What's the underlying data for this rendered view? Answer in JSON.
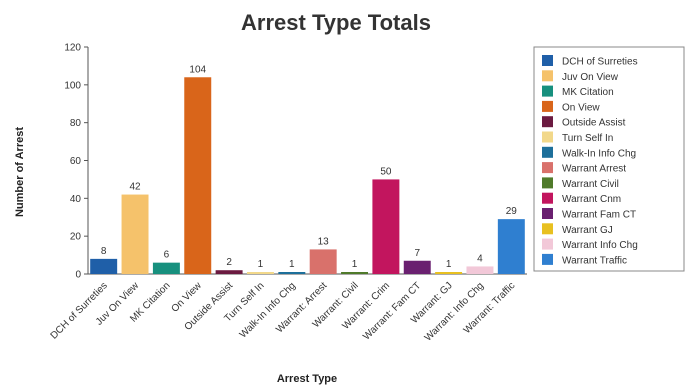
{
  "chart_data": {
    "type": "bar",
    "title": "Arrest Type Totals",
    "xlabel": "Arrest Type",
    "ylabel": "Number of Arrest",
    "ylim": [
      0,
      120
    ],
    "yticks": [
      "0",
      "20",
      "40",
      "60",
      "80",
      "100",
      "120"
    ],
    "grid": false,
    "legend_position": "right",
    "categories": [
      "DCH of Surreties",
      "Juv On View",
      "MK Citation",
      "On View",
      "Outside Assist",
      "Turn Self In",
      "Walk-In Info Chg",
      "Warrant: Arrest",
      "Warrant: Civil",
      "Warrant: Crim",
      "Warrant: Fam CT",
      "Warrant: GJ",
      "Warrant: Info Chg",
      "Warrant: Traffic"
    ],
    "values": [
      8,
      42,
      6,
      104,
      2,
      1,
      1,
      13,
      1,
      50,
      7,
      1,
      4,
      29
    ],
    "colors": [
      "#1f5fa8",
      "#f5c26b",
      "#17907e",
      "#d9651a",
      "#6b1a40",
      "#f2d88a",
      "#1d6f9a",
      "#d9716b",
      "#4f7a2a",
      "#c2155e",
      "#6a2070",
      "#e8c020",
      "#f2c8d8",
      "#2f7fd0"
    ],
    "legend": [
      "DCH of Surreties",
      "Juv On View",
      "MK Citation",
      "On View",
      "Outside Assist",
      "Turn Self In",
      "Walk-In Info Chg",
      "Warrant Arrest",
      "Warrant Civil",
      "Warrant Cnm",
      "Warrant Fam CT",
      "Warrant GJ",
      "Warrant Info Chg",
      "Warrant Traffic"
    ]
  }
}
